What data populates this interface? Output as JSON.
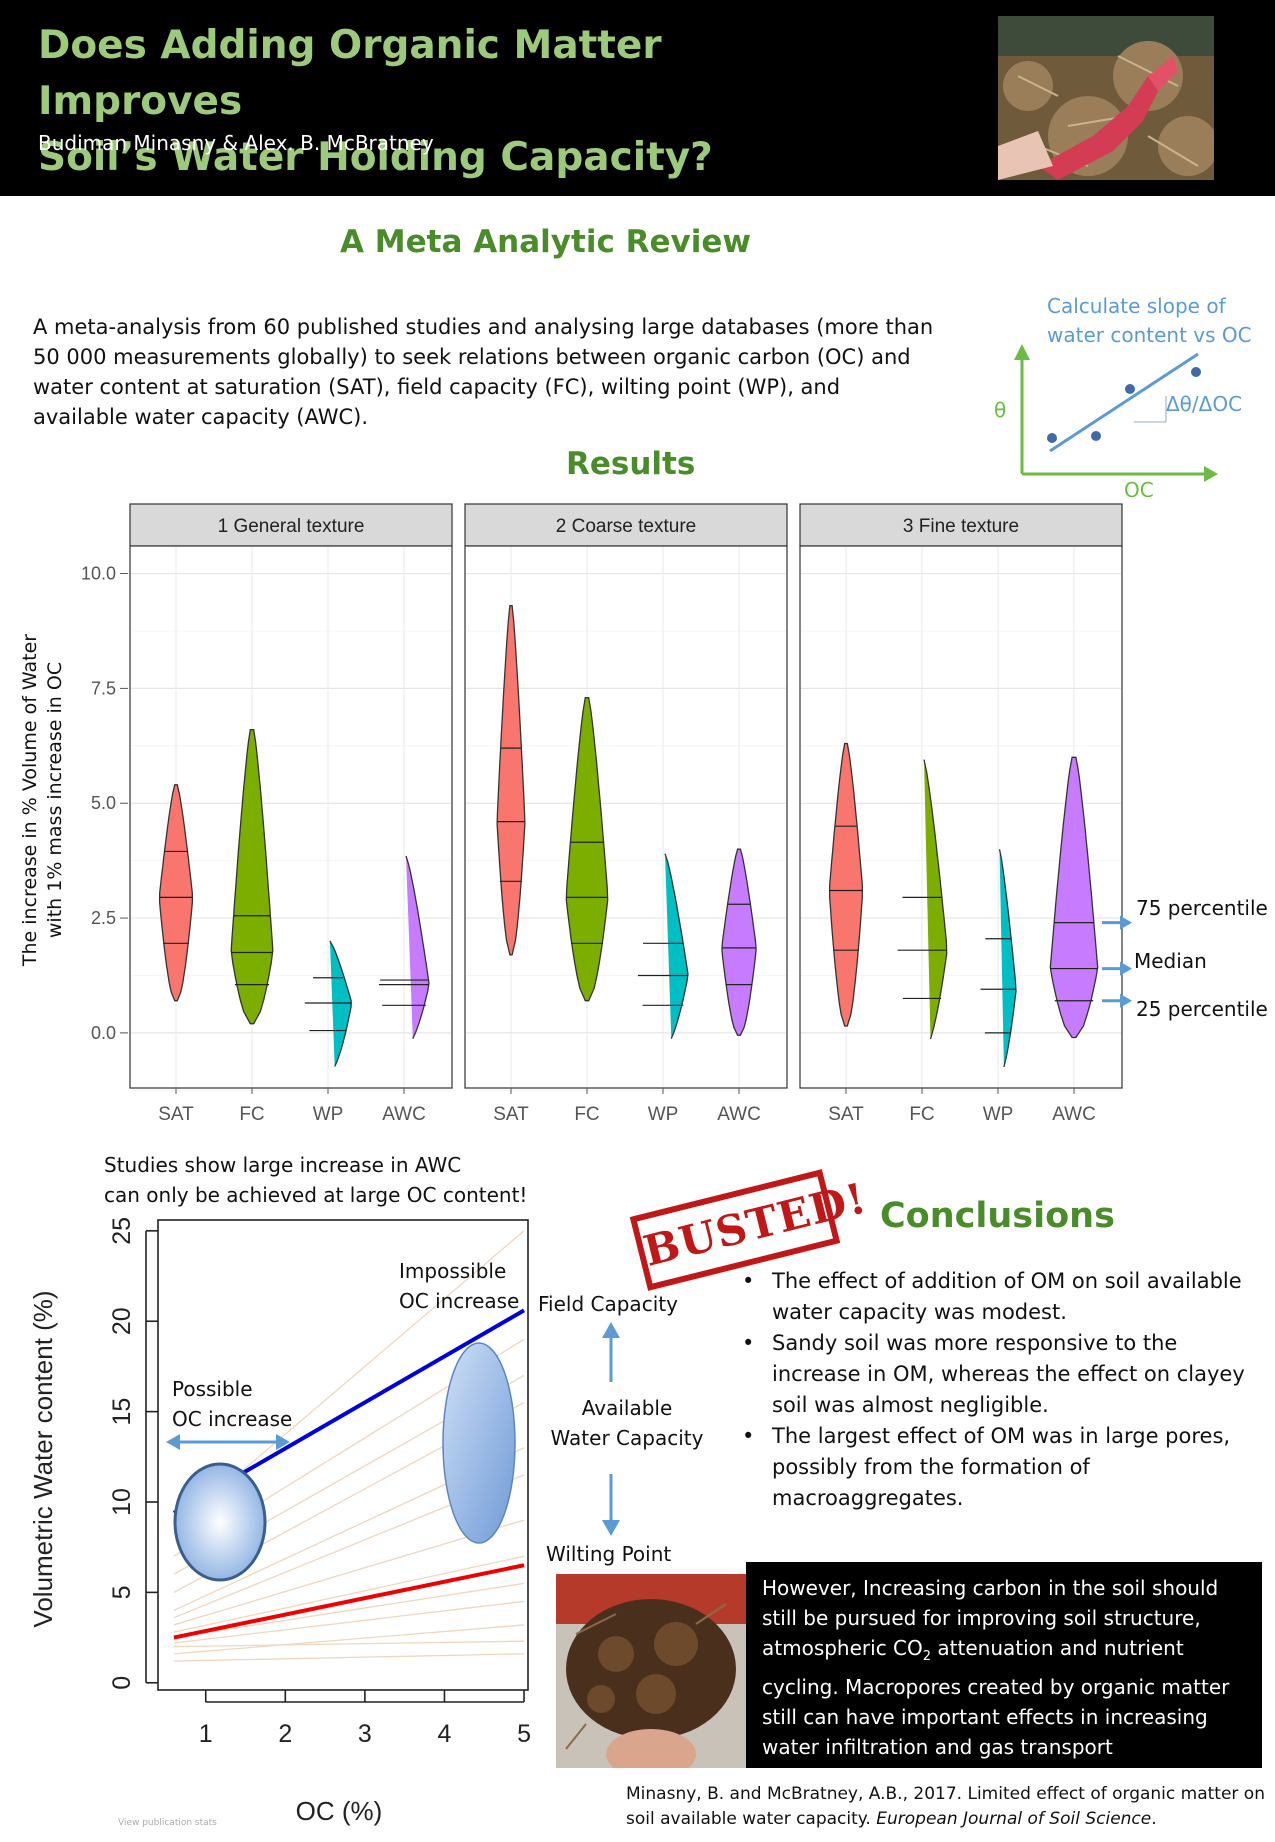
{
  "header": {
    "title_line1": "Does Adding Organic Matter Improves",
    "title_line2": "Soil’s Water Holding Capacity?",
    "authors": "Budiman Minasny & Alex. B. McBratney"
  },
  "subtitle": "A Meta Analytic Review",
  "intro": "A meta-analysis from 60 published studies and analysing large databases (more than 50 000 measurements globally) to seek relations between organic carbon (OC) and water content at saturation (SAT), field capacity (FC), wilting point (WP), and available water capacity (AWC).",
  "slope_diagram": {
    "caption_line1": "Calculate slope of",
    "caption_line2": "water content vs OC",
    "y_label": "θ",
    "x_label": "OC",
    "slope_label": "Δθ/ΔOC"
  },
  "results_title": "Results",
  "violin_annotations": {
    "p75": "75 percentile",
    "median": "Median",
    "p25": "25 percentile"
  },
  "colors": {
    "SAT": "#f8766d",
    "FC": "#7cae00",
    "WP": "#00bfc4",
    "AWC": "#c77cff",
    "title_green": "#9cc97a",
    "heading_green": "#4a8c2a",
    "annotation_blue": "#5b9bd5"
  },
  "chart_data": [
    {
      "type": "violin",
      "ylabel_line1": "The increase in % Volume of Water",
      "ylabel_line2": "with 1% mass  increase in OC",
      "yticks": [
        "10.0",
        "7.5",
        "5.0",
        "2.5",
        "0.0"
      ],
      "ylim": [
        -1.2,
        10.6
      ],
      "categories": [
        "SAT",
        "FC",
        "WP",
        "AWC"
      ],
      "panels": [
        {
          "name": "1 General texture",
          "groups": [
            {
              "cat": "SAT",
              "min": 0.7,
              "max": 5.4,
              "q1": 1.95,
              "median": 2.95,
              "q3": 3.95,
              "width": 0.6
            },
            {
              "cat": "FC",
              "min": 0.2,
              "max": 6.6,
              "q1": 1.05,
              "median": 1.75,
              "q3": 2.55,
              "width": 0.75
            },
            {
              "cat": "WP",
              "min": -0.85,
              "max": 2.0,
              "q1": 0.05,
              "median": 0.65,
              "q3": 1.2,
              "width": 0.85
            },
            {
              "cat": "AWC",
              "min": -0.3,
              "max": 3.85,
              "q1": 0.6,
              "median": 1.05,
              "q3": 1.15,
              "width": 0.9
            }
          ]
        },
        {
          "name": "2 Coarse texture",
          "groups": [
            {
              "cat": "SAT",
              "min": 1.7,
              "max": 9.3,
              "q1": 3.3,
              "median": 4.6,
              "q3": 6.2,
              "width": 0.5
            },
            {
              "cat": "FC",
              "min": 0.7,
              "max": 7.3,
              "q1": 1.95,
              "median": 2.95,
              "q3": 4.15,
              "width": 0.75
            },
            {
              "cat": "WP",
              "min": -0.3,
              "max": 3.9,
              "q1": 0.6,
              "median": 1.25,
              "q3": 1.95,
              "width": 0.9
            },
            {
              "cat": "AWC",
              "min": -0.05,
              "max": 4.0,
              "q1": 1.05,
              "median": 1.85,
              "q3": 2.8,
              "width": 0.62
            }
          ]
        },
        {
          "name": "3 Fine texture",
          "groups": [
            {
              "cat": "SAT",
              "min": 0.15,
              "max": 6.3,
              "q1": 1.8,
              "median": 3.1,
              "q3": 4.5,
              "width": 0.6
            },
            {
              "cat": "FC",
              "min": -0.4,
              "max": 5.95,
              "q1": 0.75,
              "median": 1.8,
              "q3": 2.95,
              "width": 0.9
            },
            {
              "cat": "WP",
              "min": -0.95,
              "max": 4.0,
              "q1": 0.0,
              "median": 0.95,
              "q3": 2.05,
              "width": 0.65
            },
            {
              "cat": "AWC",
              "min": -0.1,
              "max": 6.0,
              "q1": 0.7,
              "median": 1.4,
              "q3": 2.4,
              "width": 0.85
            }
          ]
        }
      ]
    },
    {
      "type": "line",
      "xlabel": "OC (%)",
      "ylabel": "Volumetric Water content (%)",
      "xticks": [
        "1",
        "2",
        "3",
        "4",
        "5"
      ],
      "yticks": [
        "0",
        "5",
        "10",
        "15",
        "20",
        "25"
      ],
      "xlim": [
        0.4,
        5.05
      ],
      "ylim": [
        -0.4,
        25.6
      ],
      "series": [
        {
          "values_x": [
            0.6,
            5.0
          ],
          "values_y": [
            9.4,
            20.6
          ],
          "color": "#0000dd"
        },
        {
          "values_x": [
            0.6,
            5.0
          ],
          "values_y": [
            2.5,
            6.5
          ],
          "color": "#ee0000"
        }
      ],
      "background_lines_color": "#f0d6bf",
      "annotations": {
        "possible": [
          "Possible",
          "OC increase"
        ],
        "impossible": [
          "Impossible",
          "OC increase"
        ]
      }
    }
  ],
  "studies_note": {
    "line1": "Studies show large increase in AWC",
    "line2": "can only be achieved at large OC content!"
  },
  "water_labels": {
    "field_capacity": "Field Capacity",
    "available_line1": "Available",
    "available_line2": "Water Capacity",
    "wilting_point": "Wilting Point"
  },
  "busted_stamp": "BUSTED!",
  "conclusions": {
    "title": "Conclusions",
    "items": [
      "The effect of addition of OM on soil available water capacity was modest.",
      "Sandy soil was more responsive to the increase in OM, whereas the effect on clayey soil was almost negligible.",
      "The largest effect of OM was in large pores, possibly from the formation of macroaggregates."
    ]
  },
  "black_box": {
    "pre": "However, Increasing carbon in the soil should still be pursued for improving soil structure, atmospheric CO",
    "sub": "2",
    "post": " attenuation and nutrient cycling. Macropores created by organic matter still can have important effects in increasing water infiltration and gas transport"
  },
  "reference": {
    "pre": "Minasny, B. and McBratney, A.B., 2017. Limited effect of organic matter on soil available water capacity. ",
    "journal": "European Journal of Soil Science",
    "post": "."
  },
  "view_stats": "View publication stats"
}
